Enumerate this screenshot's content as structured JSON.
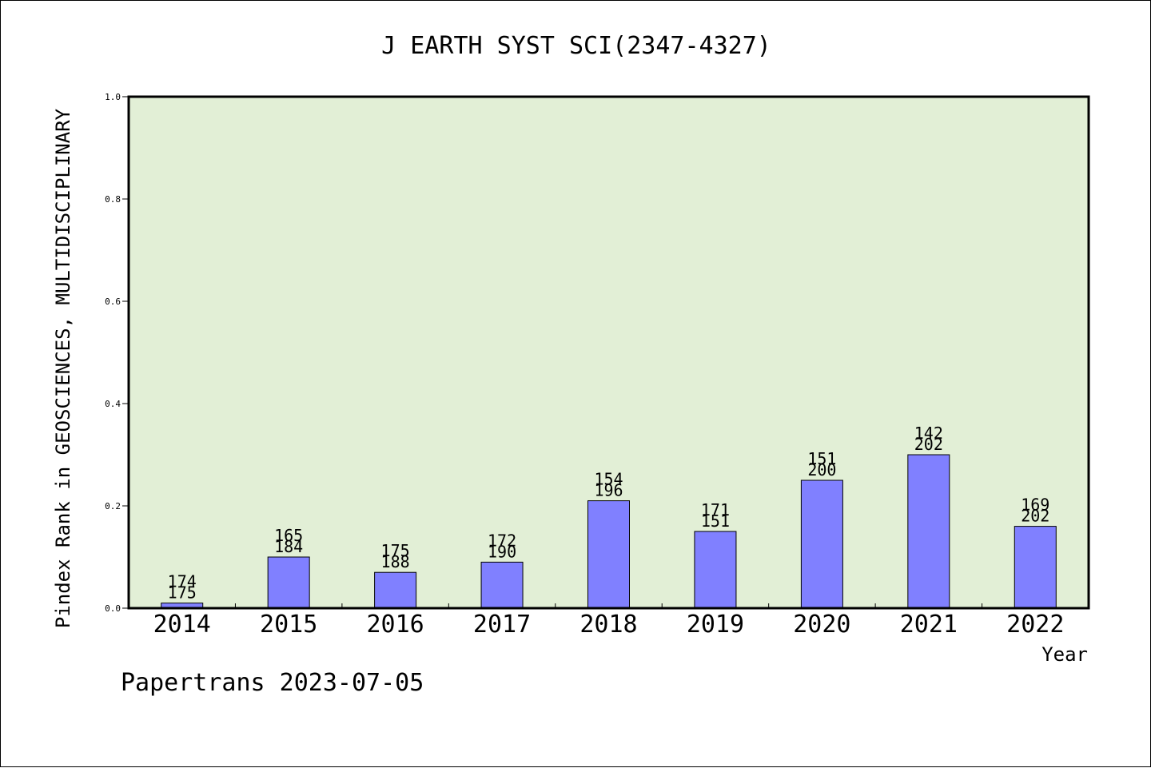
{
  "chart_data": {
    "type": "bar",
    "title": "J EARTH SYST SCI(2347-4327)",
    "xlabel": "Year",
    "ylabel": "Pindex Rank in GEOSCIENCES, MULTIDISCIPLINARY",
    "ylim": [
      0,
      1.0
    ],
    "yticks": [
      "0.0",
      "0.2",
      "0.4",
      "0.6",
      "0.8",
      "1.0"
    ],
    "categories": [
      "2014",
      "2015",
      "2016",
      "2017",
      "2018",
      "2019",
      "2020",
      "2021",
      "2022"
    ],
    "values": [
      0.01,
      0.1,
      0.07,
      0.09,
      0.21,
      0.15,
      0.25,
      0.3,
      0.16
    ],
    "labels_top": [
      "174",
      "165",
      "175",
      "172",
      "154",
      "171",
      "151",
      "142",
      "169"
    ],
    "labels_bottom": [
      "175",
      "184",
      "188",
      "190",
      "196",
      "151",
      "200",
      "202",
      "202"
    ],
    "grid": false,
    "legend": "none",
    "colors": {
      "bar": "#8080ff",
      "plot_bg": "#e2efd6",
      "axis": "#000000"
    }
  },
  "footer": "Papertrans 2023-07-05"
}
